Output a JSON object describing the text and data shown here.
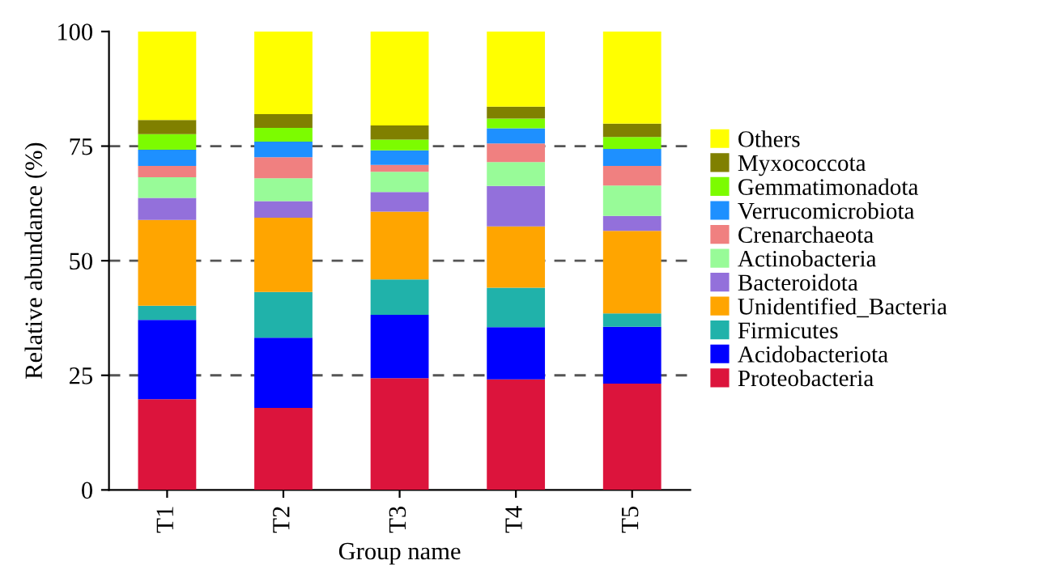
{
  "chart_data": {
    "type": "bar",
    "stacked": true,
    "xlabel": "Group name",
    "ylabel": "Relative abundance (%)",
    "categories": [
      "T1",
      "T2",
      "T3",
      "T4",
      "T5"
    ],
    "ylim": [
      0,
      100
    ],
    "yticks": [
      0,
      25,
      50,
      75,
      100
    ],
    "legend": "right",
    "ref_lines": [
      {
        "axis": "y",
        "value": 25,
        "color": "#555555",
        "line_style": "dashed"
      },
      {
        "axis": "y",
        "value": 50,
        "color": "#555555",
        "line_style": "dashed"
      },
      {
        "axis": "y",
        "value": 75,
        "color": "#555555",
        "line_style": "dashed"
      }
    ],
    "series": [
      {
        "name": "Proteobacteria",
        "color": "#dc143c",
        "values": [
          19.8,
          17.9,
          24.4,
          24.1,
          23.2
        ]
      },
      {
        "name": "Acidobacteriota",
        "color": "#0000ff",
        "values": [
          17.3,
          15.3,
          13.8,
          11.4,
          12.4
        ]
      },
      {
        "name": "Firmicutes",
        "color": "#20b2aa",
        "values": [
          3.1,
          10.0,
          7.7,
          8.6,
          2.9
        ]
      },
      {
        "name": "Unidentified_Bacteria",
        "color": "#ffa500",
        "values": [
          18.7,
          16.2,
          14.8,
          13.4,
          18.0
        ]
      },
      {
        "name": "Bacteroidota",
        "color": "#9370db",
        "values": [
          4.8,
          3.6,
          4.3,
          8.8,
          3.3
        ]
      },
      {
        "name": "Actinobacteria",
        "color": "#98fb98",
        "values": [
          4.5,
          5.0,
          4.4,
          5.2,
          6.6
        ]
      },
      {
        "name": "Crenarchaeota",
        "color": "#f08080",
        "values": [
          2.5,
          4.6,
          1.5,
          4.1,
          4.3
        ]
      },
      {
        "name": "Verrucomicrobiota",
        "color": "#1e90ff",
        "values": [
          3.5,
          3.4,
          3.2,
          3.3,
          3.7
        ]
      },
      {
        "name": "Gemmatimonadota",
        "color": "#7cfc00",
        "values": [
          3.4,
          3.0,
          2.3,
          2.1,
          2.6
        ]
      },
      {
        "name": "Myxococcota",
        "color": "#808000",
        "values": [
          3.1,
          3.0,
          3.1,
          2.6,
          2.9
        ]
      },
      {
        "name": "Others",
        "color": "#ffff00",
        "values": [
          19.3,
          18.0,
          20.5,
          16.4,
          20.1
        ]
      }
    ]
  }
}
